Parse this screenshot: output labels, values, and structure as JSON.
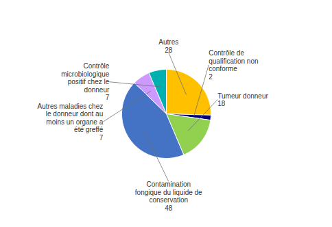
{
  "chart_data": {
    "type": "pie",
    "categories": [
      "Autres",
      "Contrôle de\nqualification non\nconforme",
      "Tumeur donneur",
      "Contamination\nfongique du liquide de\nconservation",
      "Autres maladies chez\nle donneur dont au\nmoins un organe a\nété greffé",
      "Contrôle\nmicrobiologique\npositif chez le\ndonneur"
    ],
    "values": [
      28,
      2,
      18,
      48,
      7,
      7
    ],
    "colors": [
      "#FFC000",
      "#000080",
      "#92D050",
      "#4472C4",
      "#CC99FF",
      "#00B0B0"
    ],
    "data_labels": true
  }
}
